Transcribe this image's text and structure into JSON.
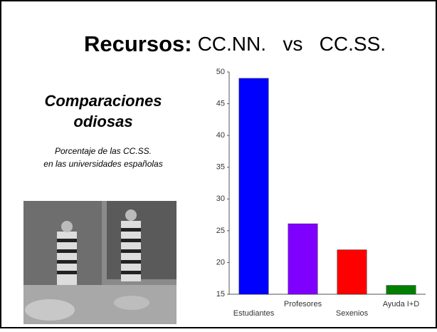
{
  "slide": {
    "title_bold": "Recursos:",
    "title_rest": "CC.NN.   vs   CC.SS.",
    "heading": [
      "Comparaciones",
      "odiosas"
    ],
    "caption": [
      "Porcentaje de las CC.SS.",
      "en las universidades españolas"
    ]
  },
  "chart_data": {
    "type": "bar",
    "categories": [
      "Estudiantes",
      "Profesores",
      "Sexenios",
      "Ayuda I+D"
    ],
    "values": [
      49,
      26.1,
      22,
      16.4
    ],
    "colors": [
      "#0000ff",
      "#8000ff",
      "#ff0000",
      "#008000"
    ],
    "ylim": [
      15,
      50
    ],
    "yticks": [
      15,
      20,
      25,
      30,
      35,
      40,
      45,
      50
    ],
    "grid": false
  }
}
